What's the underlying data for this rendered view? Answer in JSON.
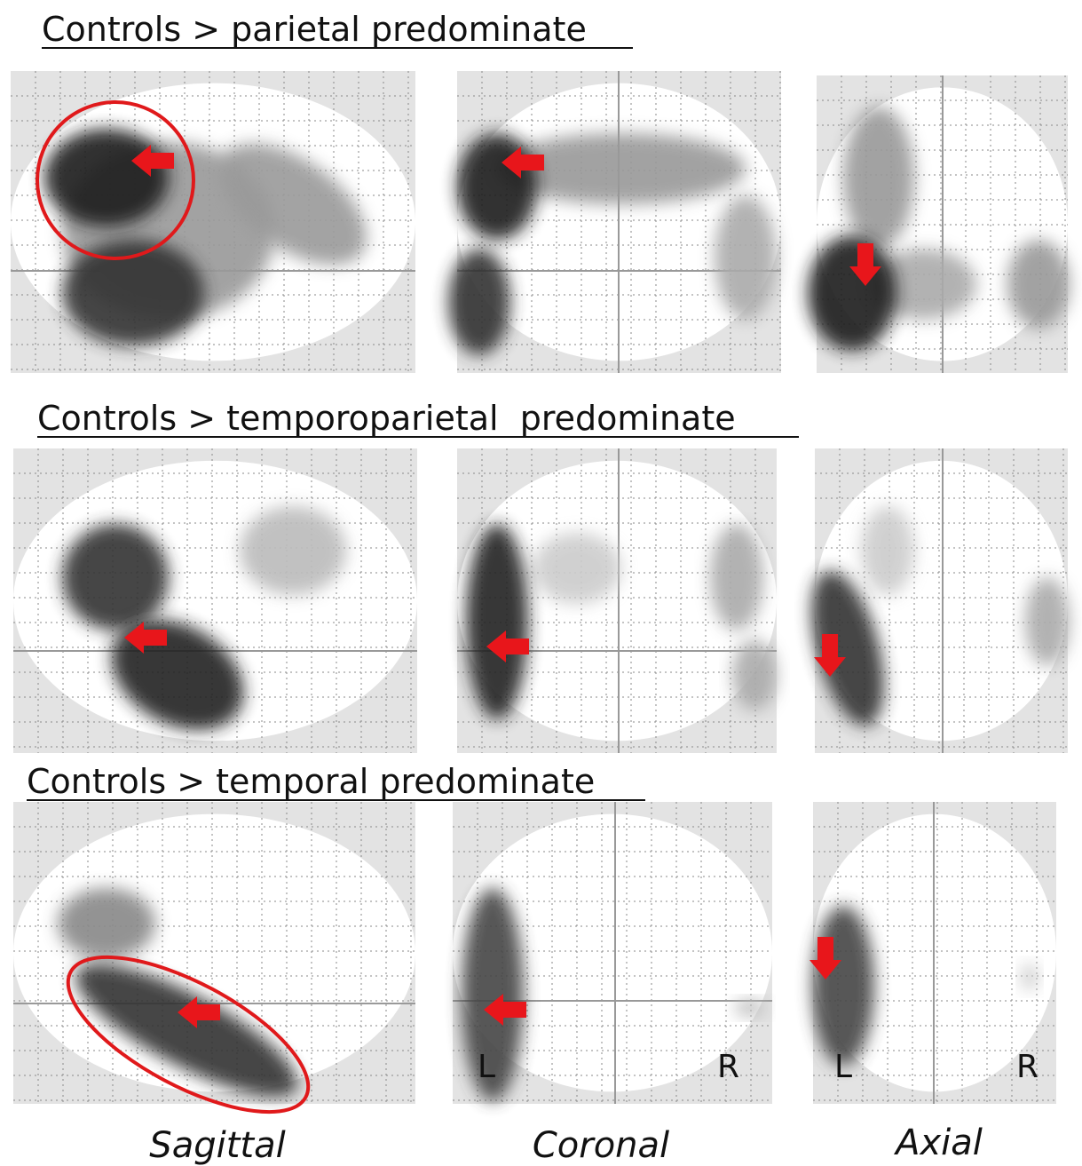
{
  "rows": [
    {
      "title": "Controls > parietal predominate"
    },
    {
      "title": "Controls > temporoparietal  predominate"
    },
    {
      "title": "Controls > temporal predominate"
    }
  ],
  "coronal_labels": [
    "L",
    "R"
  ],
  "axial_labels": [
    "L",
    "R"
  ],
  "view_labels": [
    "Sagittal",
    "Coronal",
    "Axial"
  ]
}
